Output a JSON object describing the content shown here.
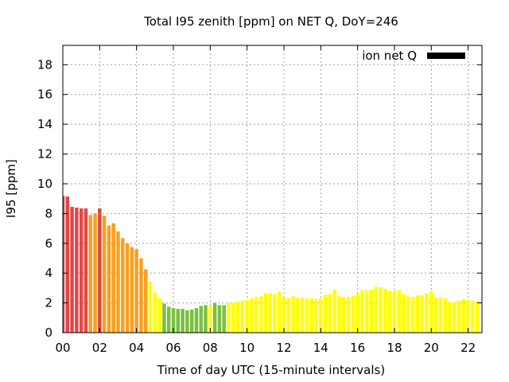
{
  "chart_data": {
    "type": "bar",
    "title": "Total I95 zenith [ppm] on NET Q, DoY=246",
    "xlabel": "Time of day UTC (15-minute intervals)",
    "ylabel": "I95 [ppm]",
    "xlim": [
      0,
      22.75
    ],
    "ylim": [
      0,
      19.3
    ],
    "xticks": [
      "00",
      "02",
      "04",
      "06",
      "08",
      "10",
      "12",
      "14",
      "16",
      "18",
      "20",
      "22"
    ],
    "yticks": [
      "0",
      "2",
      "4",
      "6",
      "8",
      "10",
      "12",
      "14",
      "16",
      "18"
    ],
    "grid": true,
    "legend": {
      "position": "top-right",
      "label": "ion net Q",
      "color": "#000000"
    },
    "bar_interval_hours": 0.25,
    "series": [
      {
        "values": [
          9.2,
          9.15,
          8.45,
          8.4,
          8.35,
          8.35,
          7.9,
          8.0,
          8.35,
          7.85,
          7.2,
          7.35,
          6.8,
          6.35,
          6.0,
          5.75,
          5.6,
          5.0,
          4.25,
          3.45,
          2.7,
          2.3,
          1.95,
          1.75,
          1.65,
          1.6,
          1.6,
          1.5,
          1.55,
          1.65,
          1.8,
          1.85,
          1.8,
          2.0,
          1.85,
          1.85,
          2.0,
          2.0,
          2.1,
          2.15,
          2.2,
          2.3,
          2.4,
          2.45,
          2.65,
          2.65,
          2.6,
          2.75,
          2.4,
          2.35,
          2.45,
          2.3,
          2.35,
          2.3,
          2.3,
          2.25,
          2.3,
          2.55,
          2.6,
          2.9,
          2.45,
          2.4,
          2.4,
          2.5,
          2.6,
          2.85,
          2.85,
          2.9,
          3.1,
          3.05,
          2.95,
          2.8,
          2.85,
          2.85,
          2.6,
          2.45,
          2.4,
          2.5,
          2.5,
          2.65,
          2.8,
          2.35,
          2.35,
          2.3,
          2.05,
          2.05,
          2.15,
          2.25,
          2.2,
          2.15,
          2.1
        ],
        "colors": [
          "#e04848",
          "#e04848",
          "#e04848",
          "#e04848",
          "#e04848",
          "#e04848",
          "#f8a020",
          "#f8a020",
          "#e04848",
          "#f8a020",
          "#f8a020",
          "#f8a020",
          "#f8a020",
          "#f8a020",
          "#f8a020",
          "#f8a020",
          "#f8a020",
          "#f8a020",
          "#f8a020",
          "#ffff00",
          "#ffff00",
          "#ffff00",
          "#7ac040",
          "#7ac040",
          "#7ac040",
          "#7ac040",
          "#7ac040",
          "#7ac040",
          "#7ac040",
          "#7ac040",
          "#7ac040",
          "#7ac040",
          "#ffff00",
          "#7ac040",
          "#7ac040",
          "#7ac040",
          "#ffff00",
          "#ffff00",
          "#ffff00",
          "#ffff00",
          "#ffff00",
          "#ffff00",
          "#ffff00",
          "#ffff00",
          "#ffff00",
          "#ffff00",
          "#ffff00",
          "#ffff00",
          "#ffff00",
          "#ffff00",
          "#ffff00",
          "#ffff00",
          "#ffff00",
          "#ffff00",
          "#ffff00",
          "#ffff00",
          "#ffff00",
          "#ffff00",
          "#ffff00",
          "#ffff00",
          "#ffff00",
          "#ffff00",
          "#ffff00",
          "#ffff00",
          "#ffff00",
          "#ffff00",
          "#ffff00",
          "#ffff00",
          "#ffff00",
          "#ffff00",
          "#ffff00",
          "#ffff00",
          "#ffff00",
          "#ffff00",
          "#ffff00",
          "#ffff00",
          "#ffff00",
          "#ffff00",
          "#ffff00",
          "#ffff00",
          "#ffff00",
          "#ffff00",
          "#ffff00",
          "#ffff00",
          "#ffff00",
          "#ffff00",
          "#ffff00",
          "#ffff00",
          "#ffff00",
          "#ffff00",
          "#ffff00"
        ]
      }
    ]
  }
}
